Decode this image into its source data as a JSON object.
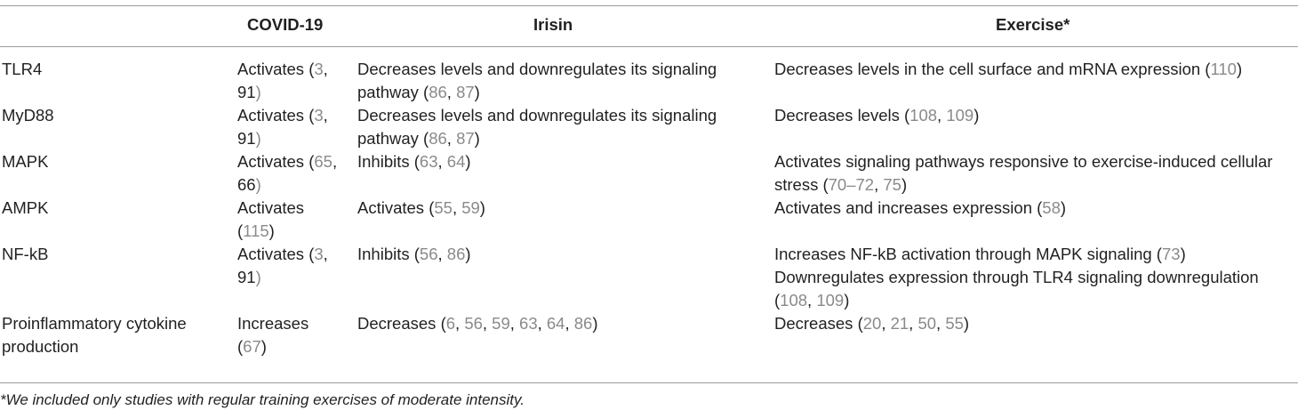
{
  "table": {
    "headers": [
      "",
      "COVID-19",
      "Irisin",
      "Exercise*"
    ],
    "rows": [
      {
        "label": [
          "TLR4"
        ],
        "covid": [
          [
            "Activates (",
            "3",
            ","
          ],
          [
            "91",
            ")"
          ]
        ],
        "irisin": [
          [
            "Decreases levels and downregulates its signaling"
          ],
          [
            "pathway (",
            "86",
            ", ",
            "87",
            ")"
          ]
        ],
        "exercise": [
          [
            "Decreases levels in the cell surface and mRNA expression (",
            "110",
            ")"
          ]
        ]
      },
      {
        "label": [
          "MyD88"
        ],
        "covid": [
          [
            "Activates (",
            "3",
            ","
          ],
          [
            "91",
            ")"
          ]
        ],
        "irisin": [
          [
            "Decreases levels and downregulates its signaling"
          ],
          [
            "pathway (",
            "86",
            ", ",
            "87",
            ")"
          ]
        ],
        "exercise": [
          [
            "Decreases levels (",
            "108",
            ", ",
            "109",
            ")"
          ]
        ]
      },
      {
        "label": [
          "MAPK"
        ],
        "covid": [
          [
            "Activates (",
            "65",
            ","
          ],
          [
            "66",
            ")"
          ]
        ],
        "irisin": [
          [
            "Inhibits (",
            "63",
            ", ",
            "64",
            ")"
          ]
        ],
        "exercise": [
          [
            "Activates signaling pathways responsive to exercise-induced cellular"
          ],
          [
            "stress (",
            "70–72",
            ", ",
            "75",
            ")"
          ]
        ]
      },
      {
        "label": [
          "AMPK"
        ],
        "covid": [
          [
            "Activates"
          ],
          [
            "(",
            "115",
            ")"
          ]
        ],
        "irisin": [
          [
            "Activates (",
            "55",
            ", ",
            "59",
            ")"
          ]
        ],
        "exercise": [
          [
            "Activates and increases expression (",
            "58",
            ")"
          ]
        ]
      },
      {
        "label": [
          "NF-kB"
        ],
        "covid": [
          [
            " Activates (",
            "3",
            ","
          ],
          [
            "91",
            ")"
          ]
        ],
        "irisin": [
          [
            "Inhibits (",
            "56",
            ", ",
            "86",
            ")"
          ]
        ],
        "exercise": [
          [
            "Increases NF-kB activation through MAPK signaling (",
            "73",
            ")"
          ],
          [
            "Downregulates expression through TLR4 signaling downregulation"
          ],
          [
            "(",
            "108",
            ", ",
            "109",
            ")"
          ]
        ]
      },
      {
        "label": [
          "Proinflammatory cytokine",
          "production"
        ],
        "covid": [
          [
            "Increases"
          ],
          [
            "(",
            "67",
            ")"
          ]
        ],
        "irisin": [
          [
            "Decreases (",
            "6",
            ", ",
            "56",
            ", ",
            "59",
            ", ",
            "63",
            ", ",
            "64",
            ", ",
            "86",
            ")"
          ]
        ],
        "exercise": [
          [
            "Decreases (",
            "20",
            ", ",
            "21",
            ", ",
            "50",
            ", ",
            "55",
            ")"
          ]
        ]
      }
    ]
  },
  "footnote": "*We included only studies with regular training exercises of moderate intensity.",
  "colors": {
    "text": "#231f20",
    "reference": "#8a8a8a",
    "rule": "#9a9a9a"
  }
}
